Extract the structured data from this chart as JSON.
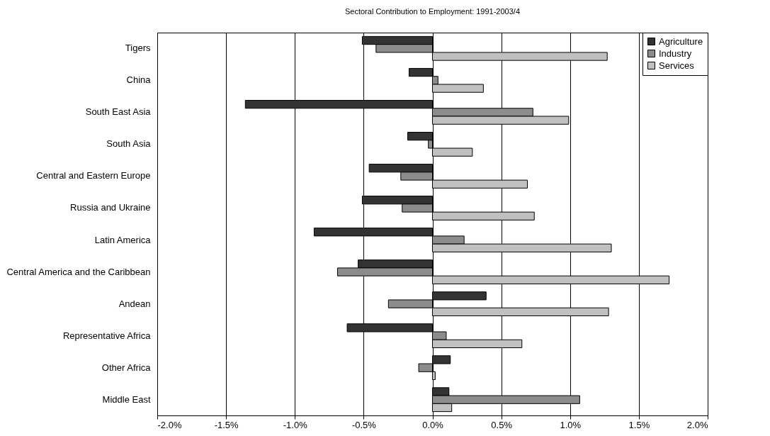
{
  "chart_data": {
    "type": "bar",
    "orientation": "horizontal",
    "title": "Sectoral Contribution to Employment: 1991-2003/4",
    "categories": [
      "Tigers",
      "China",
      "South East Asia",
      "South Asia",
      "Central and Eastern Europe",
      "Russia and Ukraine",
      "Latin America",
      "Central America and the Caribbean",
      "Andean",
      "Representative Africa",
      "Other Africa",
      "Middle East"
    ],
    "series": [
      {
        "name": "Agriculture",
        "color": "#333333",
        "values": [
          -0.51,
          -0.17,
          -1.36,
          -0.18,
          -0.46,
          -0.51,
          -0.86,
          -0.54,
          0.39,
          -0.62,
          0.13,
          0.12
        ]
      },
      {
        "name": "Industry",
        "color": "#8c8c8c",
        "values": [
          -0.41,
          0.04,
          0.73,
          -0.03,
          -0.23,
          -0.22,
          0.23,
          -0.69,
          -0.32,
          0.1,
          -0.1,
          1.07
        ]
      },
      {
        "name": "Services",
        "color": "#c0c0c0",
        "values": [
          1.27,
          0.37,
          0.99,
          0.29,
          0.69,
          0.74,
          1.3,
          1.72,
          1.28,
          0.65,
          0.02,
          0.14
        ]
      }
    ],
    "xlim": [
      -2,
      2
    ],
    "xticks": [
      {
        "value": -2,
        "label": "-2.0%"
      },
      {
        "value": -1.5,
        "label": "-1.5%"
      },
      {
        "value": -1,
        "label": "-1.0%"
      },
      {
        "value": -0.5,
        "label": "-0.5%"
      },
      {
        "value": 0,
        "label": "0.0%"
      },
      {
        "value": 0.5,
        "label": "0.5%"
      },
      {
        "value": 1,
        "label": "1.0%"
      },
      {
        "value": 1.5,
        "label": "1.5%"
      },
      {
        "value": 2,
        "label": "2.0%"
      }
    ],
    "grid": "x",
    "legend": "top right"
  }
}
